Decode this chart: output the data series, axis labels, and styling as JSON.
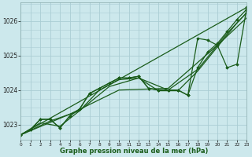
{
  "xlabel": "Graphe pression niveau de la mer (hPa)",
  "bg_color": "#cce8ec",
  "grid_color": "#aacdd4",
  "line_color": "#1a5c1a",
  "x_ticks": [
    0,
    1,
    2,
    3,
    4,
    5,
    6,
    7,
    8,
    9,
    10,
    11,
    12,
    13,
    14,
    15,
    16,
    17,
    18,
    19,
    20,
    21,
    22,
    23
  ],
  "xlim": [
    0,
    23
  ],
  "ylim": [
    1022.55,
    1026.55
  ],
  "yticks": [
    1023,
    1024,
    1025,
    1026
  ],
  "lines": [
    {
      "x": [
        0,
        23
      ],
      "y": [
        1022.7,
        1026.4
      ],
      "marker": null,
      "markersize": 0,
      "linewidth": 0.9
    },
    {
      "x": [
        0,
        5,
        10,
        15,
        20,
        23
      ],
      "y": [
        1022.7,
        1023.3,
        1024.0,
        1024.05,
        1025.3,
        1026.1
      ],
      "marker": null,
      "markersize": 0,
      "linewidth": 0.9
    },
    {
      "x": [
        0,
        1,
        2,
        3,
        4,
        5,
        6,
        7,
        8,
        9,
        10,
        11,
        12,
        13,
        14,
        15,
        16,
        17,
        18,
        19,
        20,
        21,
        22,
        23
      ],
      "y": [
        1022.7,
        1022.85,
        1023.15,
        1023.15,
        1022.9,
        1023.25,
        1023.45,
        1023.9,
        1024.05,
        1024.2,
        1024.35,
        1024.35,
        1024.4,
        1024.05,
        1024.0,
        1024.0,
        1024.0,
        1023.85,
        1024.65,
        1025.1,
        1025.35,
        1025.7,
        1026.05,
        1026.35
      ],
      "marker": "D",
      "markersize": 1.8,
      "linewidth": 0.9
    },
    {
      "x": [
        0,
        1,
        2,
        3,
        4,
        5,
        6,
        7,
        8,
        9,
        10,
        11,
        12,
        13,
        14,
        15,
        16,
        17,
        18,
        19,
        20,
        21,
        22,
        23
      ],
      "y": [
        1022.7,
        1022.85,
        1023.15,
        1023.15,
        1022.9,
        1023.25,
        1023.45,
        1023.9,
        1024.05,
        1024.2,
        1024.35,
        1024.35,
        1024.4,
        1024.05,
        1024.0,
        1024.0,
        1024.0,
        1023.85,
        1025.5,
        1025.45,
        1025.3,
        1024.65,
        1024.75,
        1026.4
      ],
      "marker": "D",
      "markersize": 1.8,
      "linewidth": 0.9
    },
    {
      "x": [
        0,
        2,
        4,
        6,
        8,
        10,
        12,
        14,
        16,
        18,
        20,
        22,
        23
      ],
      "y": [
        1022.7,
        1023.05,
        1022.95,
        1023.4,
        1024.0,
        1024.3,
        1024.35,
        1023.98,
        1023.98,
        1024.55,
        1025.25,
        1025.95,
        1026.25
      ],
      "marker": null,
      "markersize": 0,
      "linewidth": 0.9
    },
    {
      "x": [
        0,
        3,
        6,
        9,
        12,
        15,
        18,
        21,
        23
      ],
      "y": [
        1022.7,
        1023.1,
        1023.4,
        1024.1,
        1024.35,
        1024.0,
        1024.6,
        1025.65,
        1026.25
      ],
      "marker": null,
      "markersize": 0,
      "linewidth": 0.9
    }
  ]
}
